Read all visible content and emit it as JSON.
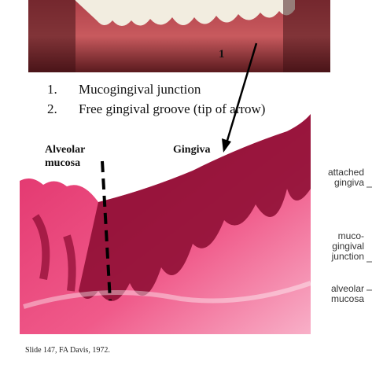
{
  "photo": {
    "marker": "1"
  },
  "list": [
    {
      "number": "1.",
      "text": "Mucogingival junction"
    },
    {
      "number": "2.",
      "text": "Free gingival groove (tip of arrow)"
    }
  ],
  "histology": {
    "labels": [
      [
        "Alveolar",
        "mucosa"
      ],
      "Gingiva"
    ]
  },
  "side_labels": [
    [
      "attached",
      "gingiva"
    ],
    [
      "muco-",
      "gingival",
      "junction"
    ],
    [
      "alveolar",
      "mucosa"
    ]
  ],
  "footer": {
    "citation": "Slide 147, FA Davis, 1972."
  }
}
